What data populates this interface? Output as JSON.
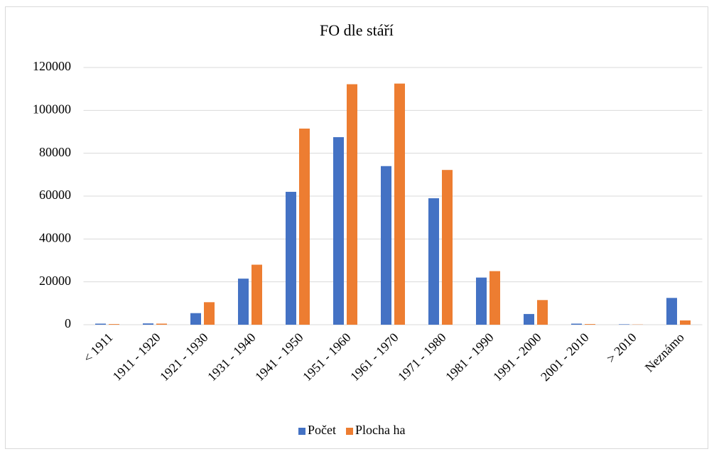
{
  "chart_data": {
    "type": "bar",
    "title": "FO dle stáří",
    "categories": [
      "< 1911",
      "1911 - 1920",
      "1921 - 1930",
      "1931 - 1940",
      "1941 - 1950",
      "1951 - 1960",
      "1961 - 1970",
      "1971 - 1980",
      "1981 - 1990",
      "1991 - 2000",
      "2001 - 2010",
      "> 2010",
      "Neznámo"
    ],
    "series": [
      {
        "name": "Počet",
        "color": "#4472c4",
        "values": [
          500,
          600,
          5400,
          21500,
          62000,
          87500,
          74000,
          59000,
          22000,
          5000,
          500,
          200,
          12500
        ]
      },
      {
        "name": "Plocha ha",
        "color": "#ed7d31",
        "values": [
          300,
          500,
          10500,
          28000,
          91500,
          112200,
          112500,
          72200,
          25000,
          11500,
          300,
          100,
          2000
        ]
      }
    ],
    "ylim": [
      0,
      120000
    ],
    "yticks": [
      0,
      20000,
      40000,
      60000,
      80000,
      100000,
      120000
    ],
    "grid": true,
    "legend": "bottom"
  }
}
